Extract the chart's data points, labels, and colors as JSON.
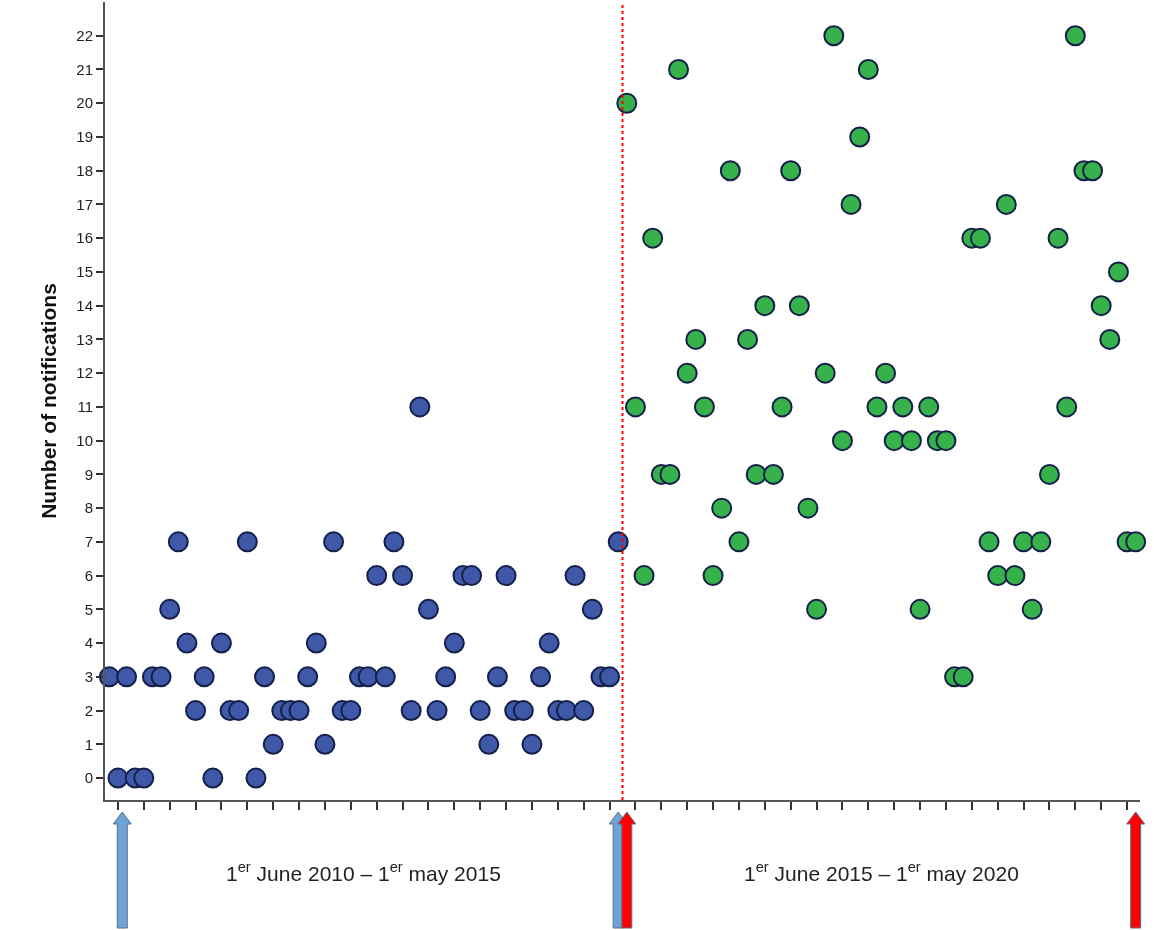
{
  "chart_data": {
    "type": "scatter",
    "ylabel": "Number of notifications",
    "categories": [
      null,
      null,
      null,
      null,
      null,
      null,
      null,
      null,
      null,
      null,
      null,
      null,
      null,
      null,
      null,
      null,
      null,
      null,
      null,
      null,
      null,
      null,
      null,
      null,
      null,
      null,
      null,
      null,
      null,
      null,
      null,
      null,
      null,
      null,
      null,
      null,
      null,
      null,
      null,
      null,
      null,
      null,
      null,
      null,
      null,
      null,
      null,
      null,
      null,
      null,
      null,
      null,
      null,
      null,
      null,
      null,
      null,
      null,
      null,
      null,
      null,
      null,
      null,
      null,
      null,
      null,
      null,
      null,
      null,
      null,
      null,
      null,
      null,
      null,
      null,
      null,
      null,
      null,
      null,
      null,
      null,
      null,
      null,
      null,
      null,
      null,
      null,
      null,
      null,
      null,
      null,
      null,
      null,
      null,
      null,
      null,
      null,
      null,
      null,
      null,
      null,
      null,
      null,
      null,
      null,
      null,
      null,
      null,
      null,
      null,
      null,
      null,
      null,
      null,
      null,
      null,
      null,
      null,
      null,
      null
    ],
    "series": [
      {
        "color": "#3f58a8",
        "values": [
          3,
          0,
          3,
          0,
          0,
          3,
          3,
          5,
          7,
          4,
          2,
          3,
          0,
          4,
          2,
          2,
          7,
          0,
          3,
          1,
          2,
          2,
          2,
          3,
          4,
          1,
          7,
          2,
          2,
          3,
          3,
          6,
          3,
          7,
          6,
          2,
          11,
          5,
          2,
          3,
          4,
          6,
          6,
          2,
          1,
          3,
          6,
          2,
          2,
          1,
          3,
          4,
          2,
          2,
          6,
          2,
          5,
          3,
          3,
          7,
          null,
          null,
          null,
          null,
          null,
          null,
          null,
          null,
          null,
          null,
          null,
          null,
          null,
          null,
          null,
          null,
          null,
          null,
          null,
          null,
          null,
          null,
          null,
          null,
          null,
          null,
          null,
          null,
          null,
          null,
          null,
          null,
          null,
          null,
          null,
          null,
          null,
          null,
          null,
          null,
          null,
          null,
          null,
          null,
          null,
          null,
          null,
          null,
          null,
          null,
          null,
          null,
          null,
          null,
          null,
          null,
          null,
          null,
          null,
          null
        ]
      },
      {
        "color": "#37b24a",
        "values": [
          null,
          null,
          null,
          null,
          null,
          null,
          null,
          null,
          null,
          null,
          null,
          null,
          null,
          null,
          null,
          null,
          null,
          null,
          null,
          null,
          null,
          null,
          null,
          null,
          null,
          null,
          null,
          null,
          null,
          null,
          null,
          null,
          null,
          null,
          null,
          null,
          null,
          null,
          null,
          null,
          null,
          null,
          null,
          null,
          null,
          null,
          null,
          null,
          null,
          null,
          null,
          null,
          null,
          null,
          null,
          null,
          null,
          null,
          null,
          null,
          20,
          11,
          6,
          16,
          9,
          9,
          21,
          12,
          13,
          11,
          6,
          8,
          18,
          7,
          13,
          9,
          14,
          9,
          11,
          18,
          14,
          8,
          5,
          12,
          22,
          10,
          17,
          19,
          21,
          11,
          12,
          10,
          11,
          10,
          5,
          11,
          10,
          10,
          3,
          3,
          16,
          16,
          7,
          6,
          17,
          6,
          7,
          5,
          7,
          9,
          16,
          11,
          22,
          18,
          18,
          14,
          13,
          15,
          7,
          7
        ]
      }
    ],
    "marker": "circle",
    "tick_labels": "y",
    "ylim": [
      -0.65,
      23
    ],
    "yticks": [
      0,
      1,
      2,
      3,
      4,
      5,
      6,
      7,
      8,
      9,
      10,
      11,
      12,
      13,
      14,
      15,
      16,
      17,
      18,
      19,
      20,
      21,
      22
    ],
    "annotations": [
      "1$^{er}$ June 2010 – 1$^{er}$ may 2015",
      "1$^{er}$ June 2015 – 1$^{er}$ may 2020"
    ]
  }
}
